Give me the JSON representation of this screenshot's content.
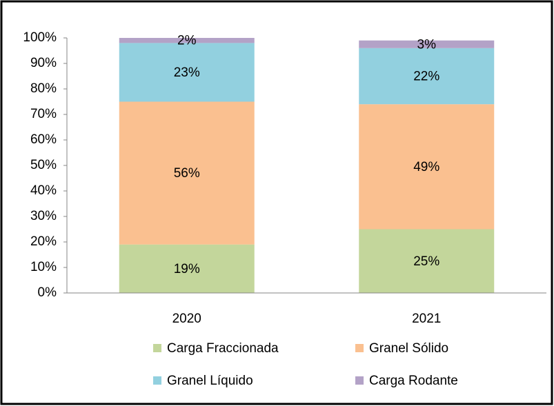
{
  "chart_data": {
    "type": "stacked_bar",
    "categories": [
      "2020",
      "2021"
    ],
    "series": [
      {
        "name": "Carga Fraccionada",
        "color": "#c3d69b",
        "values": [
          19,
          25
        ],
        "value_labels": [
          "19%",
          "25%"
        ]
      },
      {
        "name": "Granel Sólido",
        "color": "#fac090",
        "values": [
          56,
          49
        ],
        "value_labels": [
          "56%",
          "49%"
        ]
      },
      {
        "name": "Granel Líquido",
        "color": "#92d0df",
        "values": [
          23,
          22
        ],
        "value_labels": [
          "23%",
          "22%"
        ]
      },
      {
        "name": "Carga Rodante",
        "color": "#b3a2c7",
        "values": [
          2,
          3
        ],
        "value_labels": [
          "2%",
          "3%"
        ]
      }
    ],
    "ylim": [
      0,
      100
    ],
    "yticks": [
      {
        "value": 0,
        "label": "0%"
      },
      {
        "value": 10,
        "label": "10%"
      },
      {
        "value": 20,
        "label": "20%"
      },
      {
        "value": 30,
        "label": "30%"
      },
      {
        "value": 40,
        "label": "40%"
      },
      {
        "value": 50,
        "label": "50%"
      },
      {
        "value": 60,
        "label": "60%"
      },
      {
        "value": 70,
        "label": "70%"
      },
      {
        "value": 80,
        "label": "80%"
      },
      {
        "value": 90,
        "label": "90%"
      },
      {
        "value": 100,
        "label": "100%"
      }
    ],
    "grid": false,
    "legend": "bottom"
  }
}
